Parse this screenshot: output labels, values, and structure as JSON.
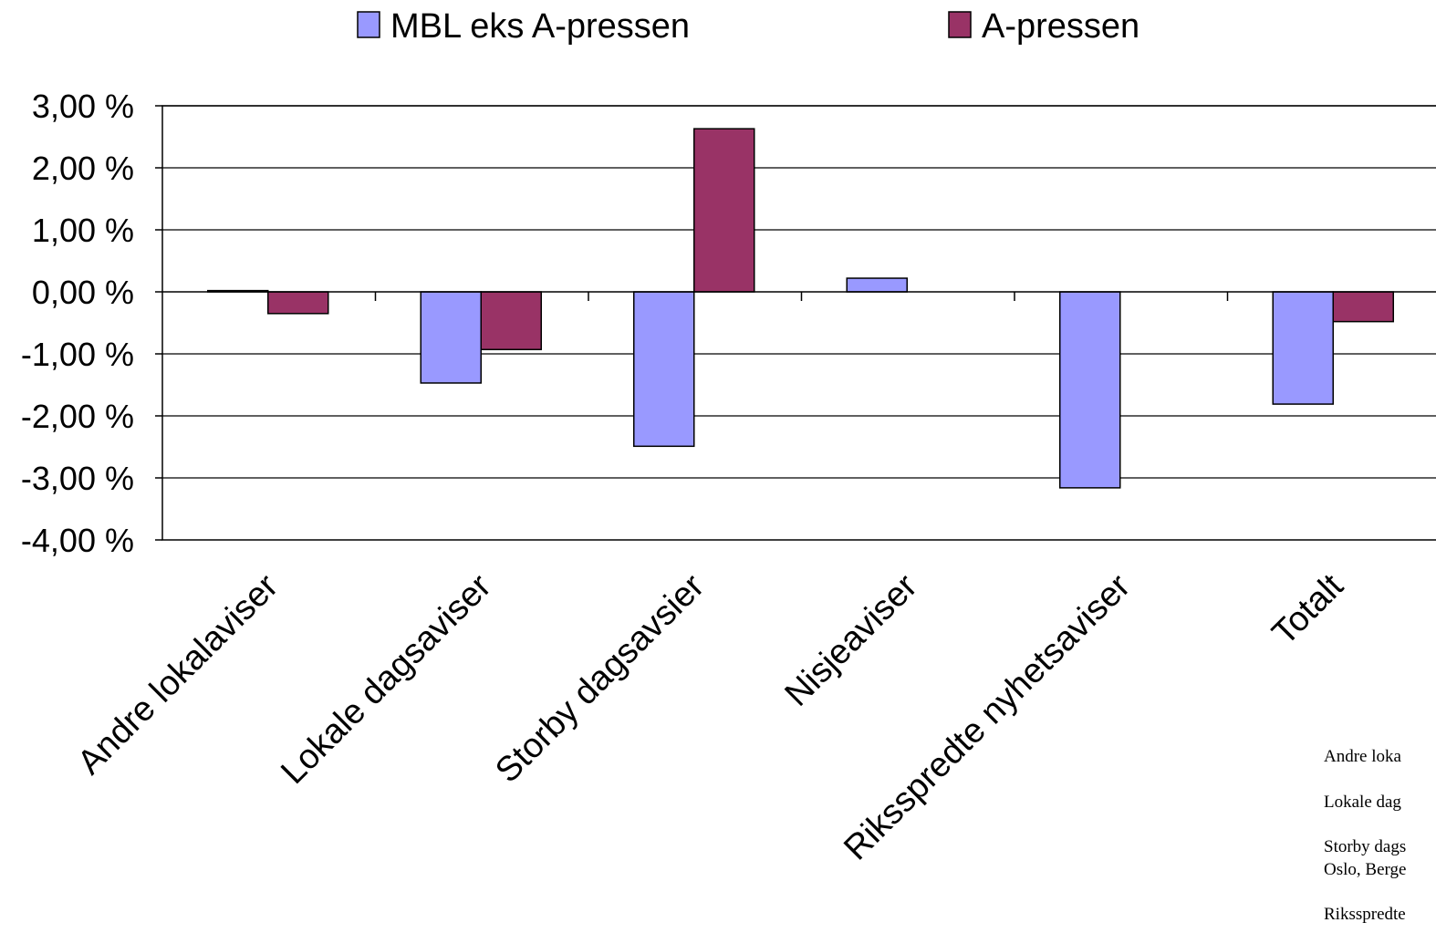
{
  "chart_data": {
    "type": "bar",
    "categories": [
      "Andre lokalaviser",
      "Lokale dagsaviser",
      "Storby dagsavsier",
      "Nisjeaviser",
      "Riksspredte nyhetsaviser",
      "Totalt"
    ],
    "series": [
      {
        "name": "MBL eks A-pressen",
        "values": [
          0.02,
          -1.47,
          -2.49,
          0.22,
          -3.16,
          -1.81
        ],
        "color": "#9999ff"
      },
      {
        "name": "A-pressen",
        "values": [
          -0.35,
          -0.93,
          2.63,
          null,
          null,
          -0.48
        ],
        "color": "#993366"
      }
    ],
    "y_ticks": [
      "3,00 %",
      "2,00 %",
      "1,00 %",
      "0,00 %",
      "-1,00 %",
      "-2,00 %",
      "-3,00 %",
      "-4,00 %"
    ],
    "ylim": [
      -4,
      3
    ],
    "grid": true,
    "legend_position": "top"
  },
  "notes": [
    "Andre loka",
    "Lokale dag",
    "Storby dags",
    "Oslo, Berge",
    "Riksspredte"
  ]
}
